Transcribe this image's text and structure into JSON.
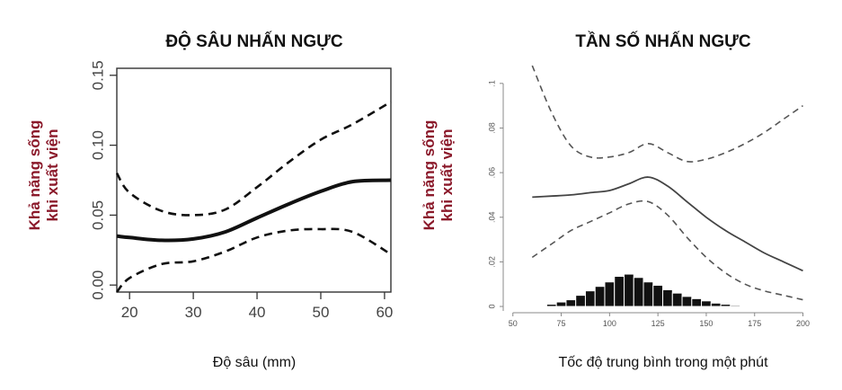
{
  "chart_data": [
    {
      "type": "line",
      "title": "ĐỘ SÂU NHẤN NGỰC",
      "xlabel": "Độ sâu (mm)",
      "ylabel": [
        "Khả năng sống",
        "khi xuất viện"
      ],
      "xlim": [
        18,
        61
      ],
      "ylim": [
        -0.005,
        0.155
      ],
      "x_ticks": [
        20,
        30,
        40,
        50,
        60
      ],
      "x_tick_labels": [
        "20",
        "30",
        "40",
        "50",
        "60"
      ],
      "y_ticks": [
        0.0,
        0.05,
        0.1,
        0.15
      ],
      "y_tick_labels": [
        "0.00",
        "0.05",
        "0.10",
        "0.15"
      ],
      "grid": false,
      "series": [
        {
          "style": "solid",
          "x": [
            18,
            20,
            25,
            30,
            35,
            40,
            45,
            50,
            55,
            61
          ],
          "y": [
            0.035,
            0.034,
            0.032,
            0.033,
            0.038,
            0.048,
            0.058,
            0.067,
            0.074,
            0.075
          ]
        },
        {
          "style": "dashed",
          "x": [
            18,
            20,
            25,
            30,
            35,
            40,
            45,
            50,
            55,
            61
          ],
          "y": [
            0.08,
            0.066,
            0.053,
            0.05,
            0.054,
            0.07,
            0.088,
            0.104,
            0.115,
            0.131
          ]
        },
        {
          "style": "dashed",
          "x": [
            18,
            20,
            25,
            30,
            35,
            40,
            45,
            50,
            55,
            61
          ],
          "y": [
            -0.005,
            0.005,
            0.015,
            0.017,
            0.024,
            0.034,
            0.039,
            0.04,
            0.038,
            0.022
          ]
        }
      ]
    },
    {
      "type": "line",
      "title": "TẦN SỐ NHẤN NGỰC",
      "xlabel": "Tốc độ trung bình trong một phút",
      "ylabel": [
        "Khả năng sống",
        "khi xuất viện"
      ],
      "xlim": [
        45,
        203
      ],
      "ylim": [
        -0.002,
        0.11
      ],
      "x_ticks": [
        50,
        75,
        100,
        125,
        150,
        175,
        200
      ],
      "x_tick_labels": [
        "50",
        "75",
        "100",
        "125",
        "150",
        "175",
        "200"
      ],
      "y_ticks": [
        0.0,
        0.02,
        0.04,
        0.06,
        0.08,
        0.1
      ],
      "y_tick_labels": [
        "0",
        ".02",
        ".04",
        ".06",
        ".08",
        ".1"
      ],
      "grid": false,
      "series": [
        {
          "style": "solid",
          "x": [
            60,
            70,
            80,
            90,
            100,
            110,
            120,
            130,
            140,
            150,
            160,
            170,
            180,
            190,
            200
          ],
          "y": [
            0.049,
            0.0495,
            0.05,
            0.051,
            0.052,
            0.055,
            0.058,
            0.054,
            0.047,
            0.04,
            0.034,
            0.029,
            0.024,
            0.02,
            0.016
          ]
        },
        {
          "style": "dashed",
          "x": [
            60,
            70,
            80,
            90,
            100,
            110,
            120,
            130,
            140,
            150,
            160,
            170,
            180,
            190,
            200
          ],
          "y": [
            0.108,
            0.087,
            0.072,
            0.067,
            0.067,
            0.069,
            0.073,
            0.069,
            0.065,
            0.066,
            0.069,
            0.073,
            0.078,
            0.084,
            0.09
          ]
        },
        {
          "style": "dashed",
          "x": [
            60,
            70,
            80,
            90,
            100,
            110,
            120,
            130,
            140,
            150,
            160,
            170,
            180,
            190,
            200
          ],
          "y": [
            0.022,
            0.028,
            0.034,
            0.038,
            0.042,
            0.046,
            0.047,
            0.041,
            0.031,
            0.022,
            0.015,
            0.01,
            0.007,
            0.005,
            0.003
          ]
        }
      ],
      "histogram": {
        "bin_width": 5,
        "bin_centers": [
          70,
          75,
          80,
          85,
          90,
          95,
          100,
          105,
          110,
          115,
          120,
          125,
          130,
          135,
          140,
          145,
          150,
          155,
          160,
          165
        ],
        "heights": [
          0.001,
          0.002,
          0.003,
          0.005,
          0.007,
          0.009,
          0.011,
          0.0135,
          0.0145,
          0.013,
          0.011,
          0.0095,
          0.0075,
          0.006,
          0.0045,
          0.0035,
          0.0025,
          0.0015,
          0.001,
          0.0005
        ]
      }
    }
  ]
}
